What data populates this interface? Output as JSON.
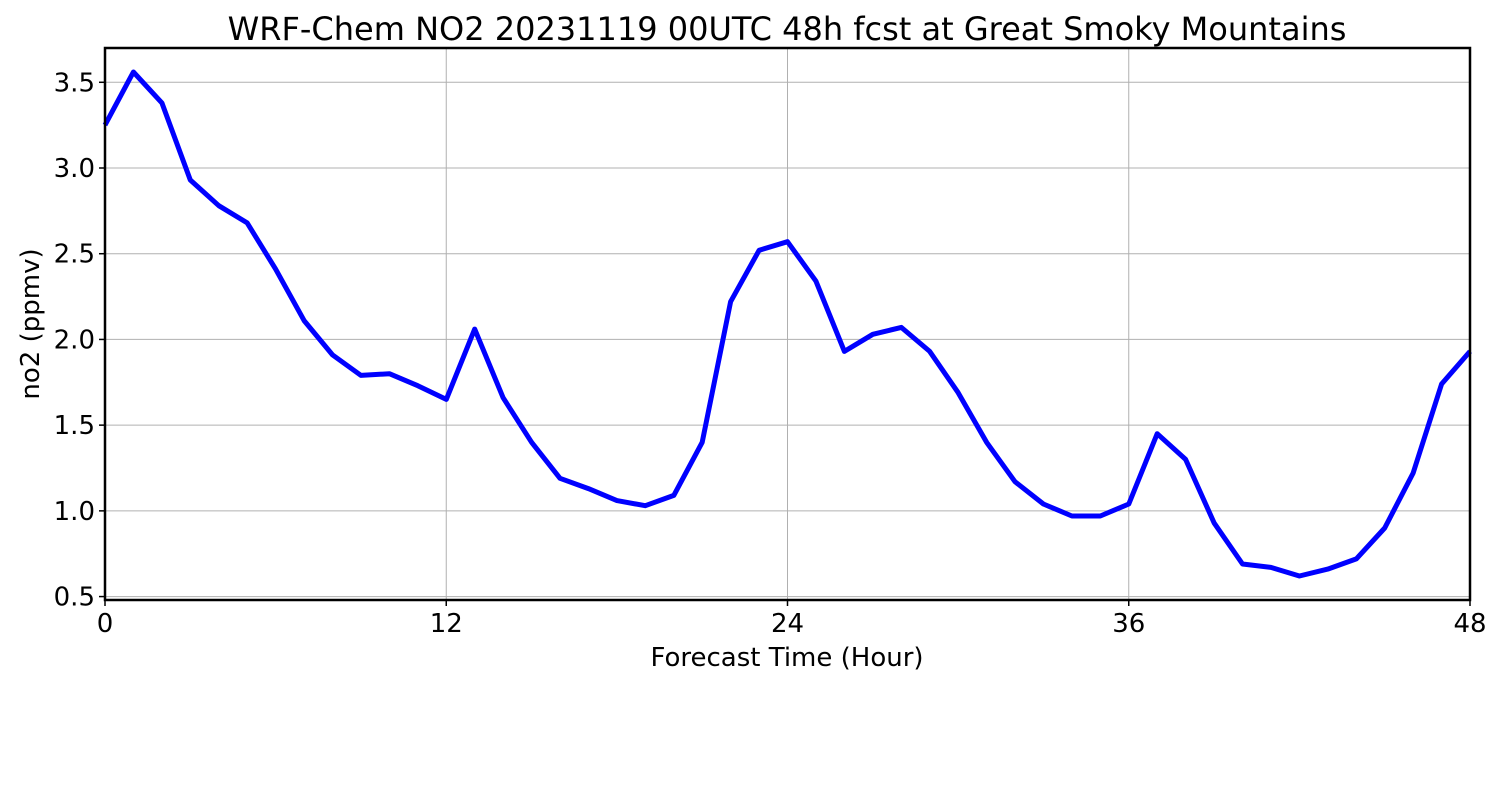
{
  "chart_data": {
    "type": "line",
    "title": "WRF-Chem NO2  20231119 00UTC 48h fcst at Great Smoky Mountains",
    "xlabel": "Forecast Time (Hour)",
    "ylabel": "no2  (ppmv)",
    "xlim": [
      0,
      48
    ],
    "ylim": [
      0.48,
      3.7
    ],
    "xticks": [
      0,
      12,
      24,
      36,
      48
    ],
    "xtick_labels": [
      "0",
      "12",
      "24",
      "36",
      "48"
    ],
    "yticks": [
      0.5,
      1.0,
      1.5,
      2.0,
      2.5,
      3.0,
      3.5
    ],
    "ytick_labels": [
      "0.5",
      "1.0",
      "1.5",
      "2.0",
      "2.5",
      "3.0",
      "3.5"
    ],
    "grid": true,
    "series": [
      {
        "color": "#0000ff",
        "x": [
          0,
          1,
          2,
          3,
          4,
          5,
          6,
          7,
          8,
          9,
          10,
          11,
          12,
          13,
          14,
          15,
          16,
          17,
          18,
          19,
          20,
          21,
          22,
          23,
          24,
          25,
          26,
          27,
          28,
          29,
          30,
          31,
          32,
          33,
          34,
          35,
          36,
          37,
          38,
          39,
          40,
          41,
          42,
          43,
          44,
          45,
          46,
          47,
          48
        ],
        "values": [
          3.25,
          3.56,
          3.38,
          2.93,
          2.78,
          2.68,
          2.41,
          2.11,
          1.91,
          1.79,
          1.8,
          1.73,
          1.65,
          2.06,
          1.66,
          1.4,
          1.19,
          1.13,
          1.06,
          1.03,
          1.09,
          1.4,
          2.22,
          2.52,
          2.57,
          2.34,
          1.93,
          2.03,
          2.07,
          1.93,
          1.69,
          1.4,
          1.17,
          1.04,
          0.97,
          0.97,
          1.04,
          1.45,
          1.3,
          0.93,
          0.69,
          0.67,
          0.62,
          0.66,
          0.72,
          0.9,
          1.22,
          1.74,
          1.93
        ]
      }
    ]
  }
}
